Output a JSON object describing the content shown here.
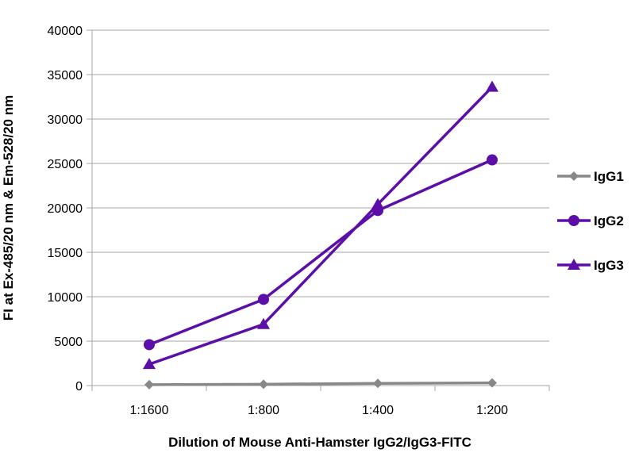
{
  "chart_data": {
    "type": "line",
    "categories": [
      "1:1600",
      "1:800",
      "1:400",
      "1:200"
    ],
    "series": [
      {
        "name": "IgG1",
        "values": [
          100,
          150,
          250,
          300
        ],
        "color": "#888888",
        "marker": "diamond"
      },
      {
        "name": "IgG2",
        "values": [
          4600,
          9700,
          19700,
          25400
        ],
        "color": "#5b0fa8",
        "marker": "circle"
      },
      {
        "name": "IgG3",
        "values": [
          2400,
          6900,
          20400,
          33600
        ],
        "color": "#5b0fa8",
        "marker": "triangle"
      }
    ],
    "xlabel": "Dilution of Mouse Anti-Hamster IgG2/IgG3-FITC",
    "ylabel": "FI at Ex-485/20 nm & Em-528/20 nm",
    "ylim": [
      0,
      40000
    ],
    "yticks": [
      0,
      5000,
      10000,
      15000,
      20000,
      25000,
      30000,
      35000,
      40000
    ],
    "grid": true,
    "legend": "right"
  }
}
